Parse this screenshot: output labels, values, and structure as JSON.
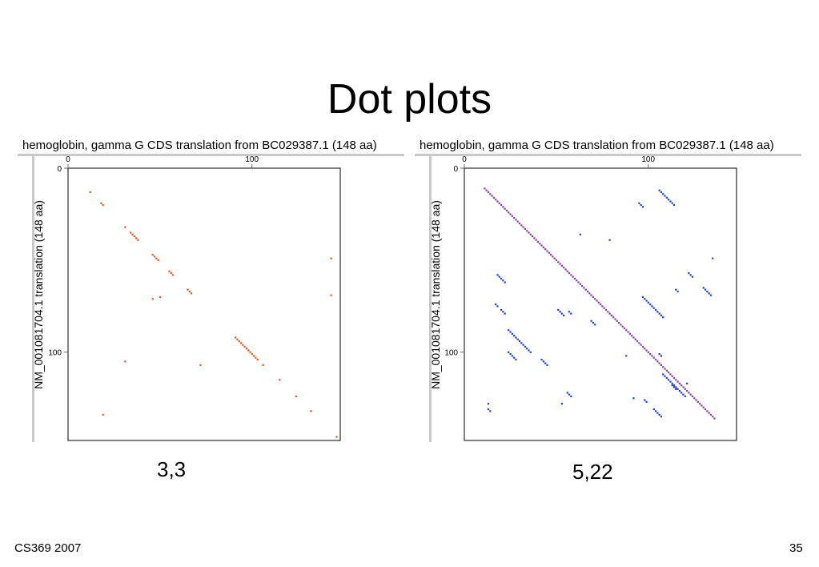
{
  "title": "Dot plots",
  "footer": {
    "left": "CS369 2007",
    "right": "35"
  },
  "chart_data": [
    {
      "type": "scatter",
      "title": "hemoglobin, gamma G CDS translation from BC029387.1 (148 aa)",
      "ylabel": "NM_001081704.1 translation (148 aa)",
      "caption": "3,3",
      "xlim": [
        0,
        148
      ],
      "ylim": [
        0,
        148
      ],
      "x_ticks": [
        0,
        100
      ],
      "y_ticks": [
        0,
        100
      ],
      "color": "#e8541c",
      "series": [
        {
          "points": [
            [
              12,
              13
            ],
            [
              18,
              19
            ],
            [
              19,
              20
            ],
            [
              31,
              32
            ],
            [
              34,
              35
            ],
            [
              35,
              36
            ],
            [
              36,
              37
            ],
            [
              37,
              38
            ],
            [
              38,
              39
            ],
            [
              46,
              47
            ],
            [
              47,
              48
            ],
            [
              48,
              49
            ],
            [
              49,
              50
            ],
            [
              55,
              56
            ],
            [
              56,
              57
            ],
            [
              57,
              58
            ],
            [
              65,
              66
            ],
            [
              66,
              67
            ],
            [
              67,
              68
            ],
            [
              91,
              92
            ],
            [
              92,
              93
            ],
            [
              93,
              94
            ],
            [
              94,
              95
            ],
            [
              95,
              96
            ],
            [
              96,
              97
            ],
            [
              97,
              98
            ],
            [
              98,
              99
            ],
            [
              99,
              100
            ],
            [
              100,
              101
            ],
            [
              101,
              102
            ],
            [
              102,
              103
            ],
            [
              103,
              104
            ],
            [
              106,
              107
            ],
            [
              115,
              115
            ],
            [
              124,
              124
            ],
            [
              132,
              132
            ],
            [
              146,
              146
            ],
            [
              143,
              49
            ],
            [
              143,
              69
            ],
            [
              46,
              71
            ],
            [
              50,
              70
            ],
            [
              31,
              105
            ],
            [
              72,
              107
            ],
            [
              19,
              134
            ]
          ]
        }
      ]
    },
    {
      "type": "scatter",
      "title": "hemoglobin, gamma G CDS translation from BC029387.1 (148 aa)",
      "ylabel": "NM_001081704.1 translation (148 aa)",
      "caption": "5,22",
      "xlim": [
        0,
        148
      ],
      "ylim": [
        0,
        148
      ],
      "x_ticks": [
        0,
        100
      ],
      "y_ticks": [
        0,
        100
      ],
      "diagonal": {
        "from": 11,
        "to": 136,
        "color": "#8a3f9e"
      },
      "color": "#1f3fd6",
      "series": [
        {
          "points": [
            [
              106,
              12
            ],
            [
              107,
              13
            ],
            [
              108,
              14
            ],
            [
              109,
              15
            ],
            [
              110,
              16
            ],
            [
              111,
              17
            ],
            [
              112,
              18
            ],
            [
              113,
              19
            ],
            [
              114,
              20
            ],
            [
              95,
              19
            ],
            [
              96,
              20
            ],
            [
              97,
              21
            ],
            [
              63,
              36
            ],
            [
              79,
              39
            ],
            [
              135,
              49
            ],
            [
              122,
              57
            ],
            [
              123,
              58
            ],
            [
              124,
              59
            ],
            [
              18,
              58
            ],
            [
              19,
              59
            ],
            [
              20,
              60
            ],
            [
              21,
              61
            ],
            [
              22,
              62
            ],
            [
              115,
              66
            ],
            [
              116,
              67
            ],
            [
              130,
              65
            ],
            [
              131,
              66
            ],
            [
              132,
              67
            ],
            [
              133,
              68
            ],
            [
              134,
              69
            ],
            [
              97,
              70
            ],
            [
              98,
              71
            ],
            [
              99,
              72
            ],
            [
              100,
              73
            ],
            [
              101,
              74
            ],
            [
              102,
              75
            ],
            [
              103,
              76
            ],
            [
              104,
              77
            ],
            [
              105,
              78
            ],
            [
              106,
              79
            ],
            [
              107,
              80
            ],
            [
              108,
              81
            ],
            [
              17,
              74
            ],
            [
              18,
              75
            ],
            [
              20,
              77
            ],
            [
              21,
              78
            ],
            [
              22,
              79
            ],
            [
              51,
              77
            ],
            [
              52,
              78
            ],
            [
              53,
              79
            ],
            [
              54,
              80
            ],
            [
              57,
              78
            ],
            [
              58,
              79
            ],
            [
              69,
              83
            ],
            [
              70,
              84
            ],
            [
              71,
              85
            ],
            [
              24,
              88
            ],
            [
              25,
              89
            ],
            [
              26,
              90
            ],
            [
              27,
              91
            ],
            [
              28,
              92
            ],
            [
              29,
              93
            ],
            [
              30,
              94
            ],
            [
              31,
              95
            ],
            [
              32,
              96
            ],
            [
              33,
              97
            ],
            [
              34,
              98
            ],
            [
              35,
              99
            ],
            [
              36,
              100
            ],
            [
              24,
              100
            ],
            [
              25,
              101
            ],
            [
              26,
              102
            ],
            [
              27,
              103
            ],
            [
              28,
              104
            ],
            [
              42,
              104
            ],
            [
              43,
              105
            ],
            [
              44,
              106
            ],
            [
              45,
              107
            ],
            [
              106,
              101
            ],
            [
              107,
              102
            ],
            [
              88,
              102
            ],
            [
              108,
              112
            ],
            [
              109,
              113
            ],
            [
              110,
              114
            ],
            [
              111,
              115
            ],
            [
              112,
              116
            ],
            [
              113,
              117
            ],
            [
              114,
              118
            ],
            [
              115,
              119
            ],
            [
              116,
              120
            ],
            [
              117,
              121
            ],
            [
              118,
              122
            ],
            [
              119,
              123
            ],
            [
              120,
              124
            ],
            [
              113,
              118
            ],
            [
              114,
              119
            ],
            [
              115,
              120
            ],
            [
              121,
              117
            ],
            [
              56,
              122
            ],
            [
              57,
              123
            ],
            [
              58,
              124
            ],
            [
              53,
              128
            ],
            [
              92,
              125
            ],
            [
              98,
              126
            ],
            [
              99,
              127
            ],
            [
              103,
              131
            ],
            [
              104,
              132
            ],
            [
              105,
              133
            ],
            [
              106,
              134
            ],
            [
              107,
              135
            ],
            [
              13,
              128
            ],
            [
              13,
              131
            ],
            [
              14,
              132
            ]
          ]
        }
      ]
    }
  ]
}
